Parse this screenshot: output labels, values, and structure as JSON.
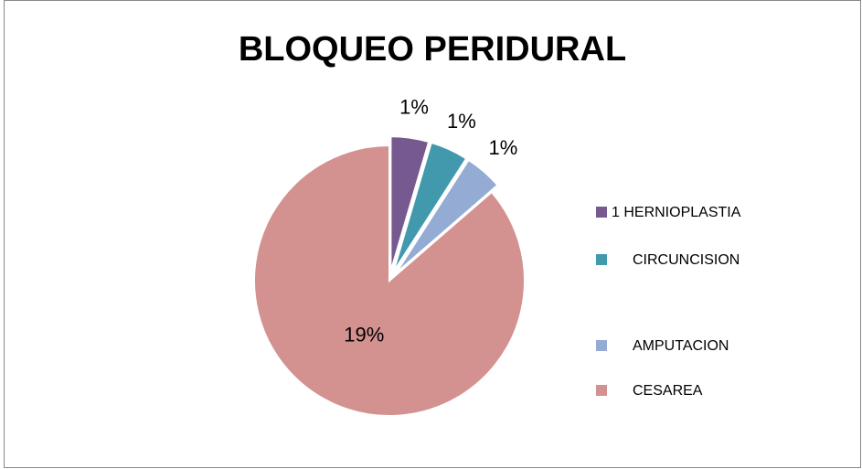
{
  "chart_data": {
    "type": "pie",
    "title": "BLOQUEO PERIDURAL",
    "categories": [
      "1 HERNIOPLASTIA",
      "CIRCUNCISION",
      "AMPUTACION",
      "CESAREA"
    ],
    "values": [
      1,
      1,
      1,
      19
    ],
    "value_labels": [
      "1%",
      "1%",
      "1%",
      "19%"
    ],
    "colors": [
      "#76598f",
      "#4298ad",
      "#94abd4",
      "#d39290"
    ],
    "exploded": [
      true,
      true,
      true,
      false
    ],
    "legend": "right"
  }
}
